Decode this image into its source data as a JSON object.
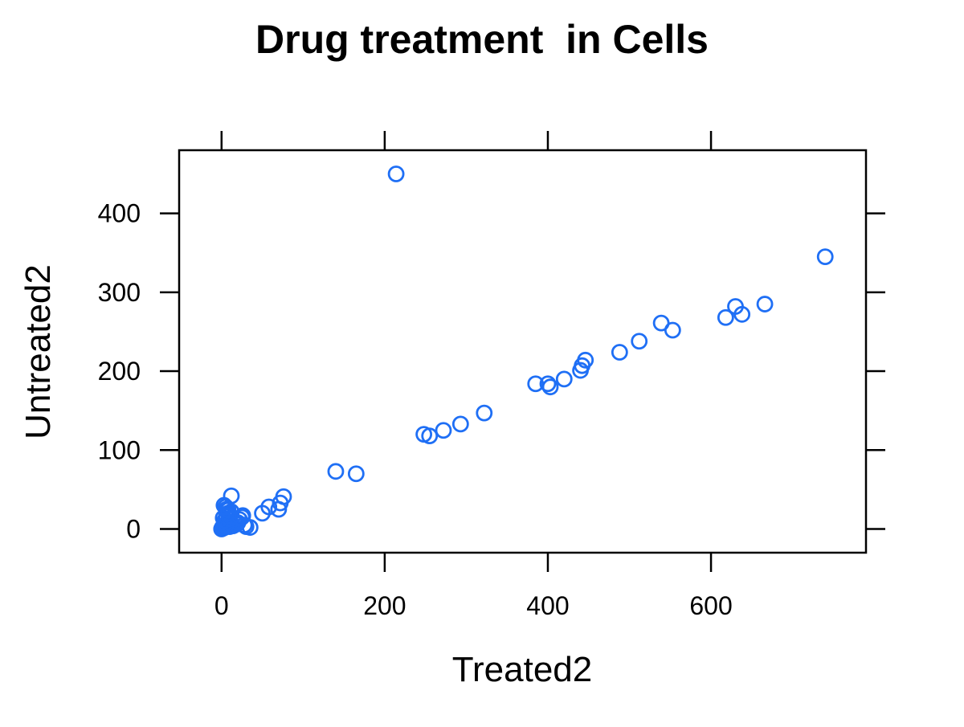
{
  "chart_data": {
    "type": "scatter",
    "title": "Drug treatment  in Cells",
    "xlabel": "Treated2",
    "ylabel": "Untreated2",
    "xlim": [
      -52,
      790
    ],
    "ylim": [
      -30,
      480
    ],
    "xticks": [
      0,
      200,
      400,
      600
    ],
    "yticks": [
      0,
      100,
      200,
      300,
      400
    ],
    "grid": false,
    "legend": "none",
    "point_color": "#1f6ff5",
    "series": [
      {
        "x": [
          0,
          1,
          2,
          3,
          4,
          5,
          6,
          7,
          8,
          9,
          10,
          12,
          14,
          16,
          18,
          20,
          22,
          25,
          28,
          30,
          3,
          6,
          9,
          12,
          2,
          4,
          6,
          8,
          10,
          35,
          12,
          5,
          8,
          26,
          50,
          58,
          70,
          72,
          76,
          140,
          165,
          214,
          248,
          255,
          272,
          293,
          322,
          385,
          400,
          403,
          420,
          440,
          442,
          446,
          488,
          512,
          539,
          553,
          618,
          630,
          638,
          666,
          740
        ],
        "y": [
          0,
          2,
          1,
          4,
          2,
          6,
          3,
          8,
          5,
          9,
          3,
          7,
          4,
          10,
          6,
          8,
          12,
          15,
          5,
          3,
          30,
          25,
          18,
          22,
          14,
          11,
          16,
          20,
          13,
          2,
          42,
          28,
          24,
          17,
          20,
          28,
          25,
          33,
          41,
          73,
          70,
          450,
          120,
          118,
          125,
          133,
          147,
          184,
          184,
          180,
          190,
          201,
          207,
          214,
          224,
          238,
          261,
          252,
          268,
          282,
          272,
          285,
          345
        ]
      }
    ]
  }
}
